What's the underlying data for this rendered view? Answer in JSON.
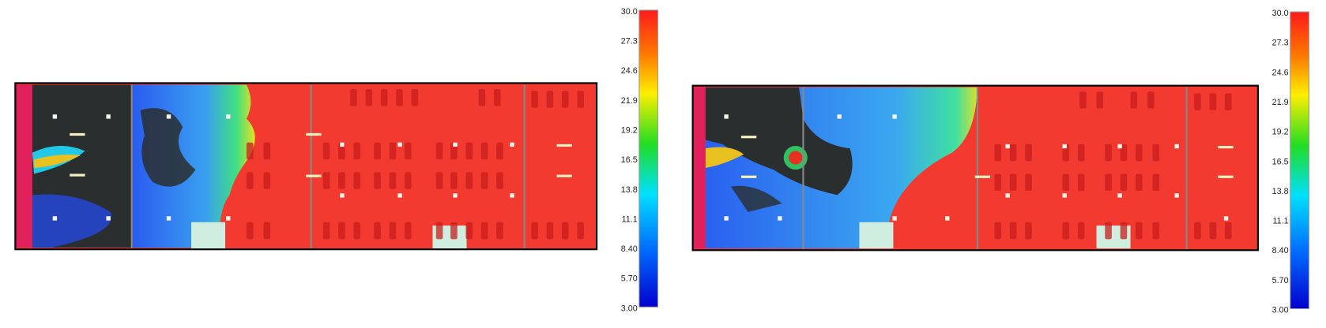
{
  "panels": [
    {
      "colorbar": {
        "labels": [
          "30.0",
          "27.3",
          "24.6",
          "21.9",
          "19.2",
          "16.5",
          "13.8",
          "11.1",
          "8.40",
          "5.70",
          "3.00"
        ]
      }
    },
    {
      "colorbar": {
        "labels": [
          "30.0",
          "27.3",
          "24.6",
          "21.9",
          "19.2",
          "16.5",
          "13.8",
          "11.1",
          "8.40",
          "5.70",
          "3.00"
        ]
      }
    }
  ]
}
